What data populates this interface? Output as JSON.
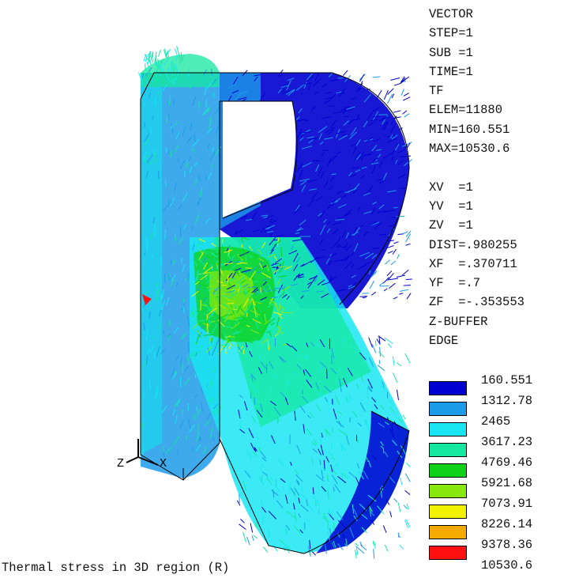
{
  "info_lines": [
    "VECTOR",
    "STEP=1",
    "SUB =1",
    "TIME=1",
    "TF",
    "ELEM=11880",
    "MIN=160.551",
    "MAX=10530.6",
    "",
    "XV  =1",
    "YV  =1",
    "ZV  =1",
    "DIST=.980255",
    "XF  =.370711",
    "YF  =.7",
    "ZF  =-.353553",
    "Z-BUFFER",
    "EDGE"
  ],
  "legend": [
    {
      "value": "160.551",
      "color": "#0000d0"
    },
    {
      "value": "1312.78",
      "color": "#1c9be8"
    },
    {
      "value": "2465",
      "color": "#19e6f2"
    },
    {
      "value": "3617.23",
      "color": "#14e8a0"
    },
    {
      "value": "4769.46",
      "color": "#0ed217"
    },
    {
      "value": "5921.68",
      "color": "#88e80e"
    },
    {
      "value": "7073.91",
      "color": "#f2f200"
    },
    {
      "value": "8226.14",
      "color": "#f5aa00"
    },
    {
      "value": "9378.36",
      "color": "#ff1010"
    },
    {
      "value": "10530.6",
      "color": ""
    }
  ],
  "triad": {
    "z_label": "Z",
    "x_label": "X"
  },
  "caption": "Thermal stress in 3D region (R)"
}
